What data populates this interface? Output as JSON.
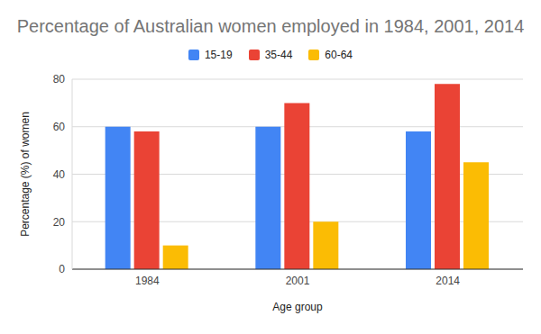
{
  "chart_data": {
    "type": "bar",
    "title": "Percentage of Australian women employed in 1984, 2001, 2014",
    "x_label": "Age group",
    "y_label": "Percentage (%) of women",
    "categories": [
      "1984",
      "2001",
      "2014"
    ],
    "series": [
      {
        "name": "15-19",
        "color": "#4285f4",
        "values": [
          60,
          60,
          58
        ]
      },
      {
        "name": "35-44",
        "color": "#ea4335",
        "values": [
          58,
          70,
          78
        ]
      },
      {
        "name": "60-64",
        "color": "#fbbc04",
        "values": [
          10,
          20,
          45
        ]
      }
    ],
    "ylim": [
      0,
      80
    ],
    "yticks": [
      0,
      20,
      40,
      60,
      80
    ],
    "grid": true,
    "legend": "top"
  }
}
